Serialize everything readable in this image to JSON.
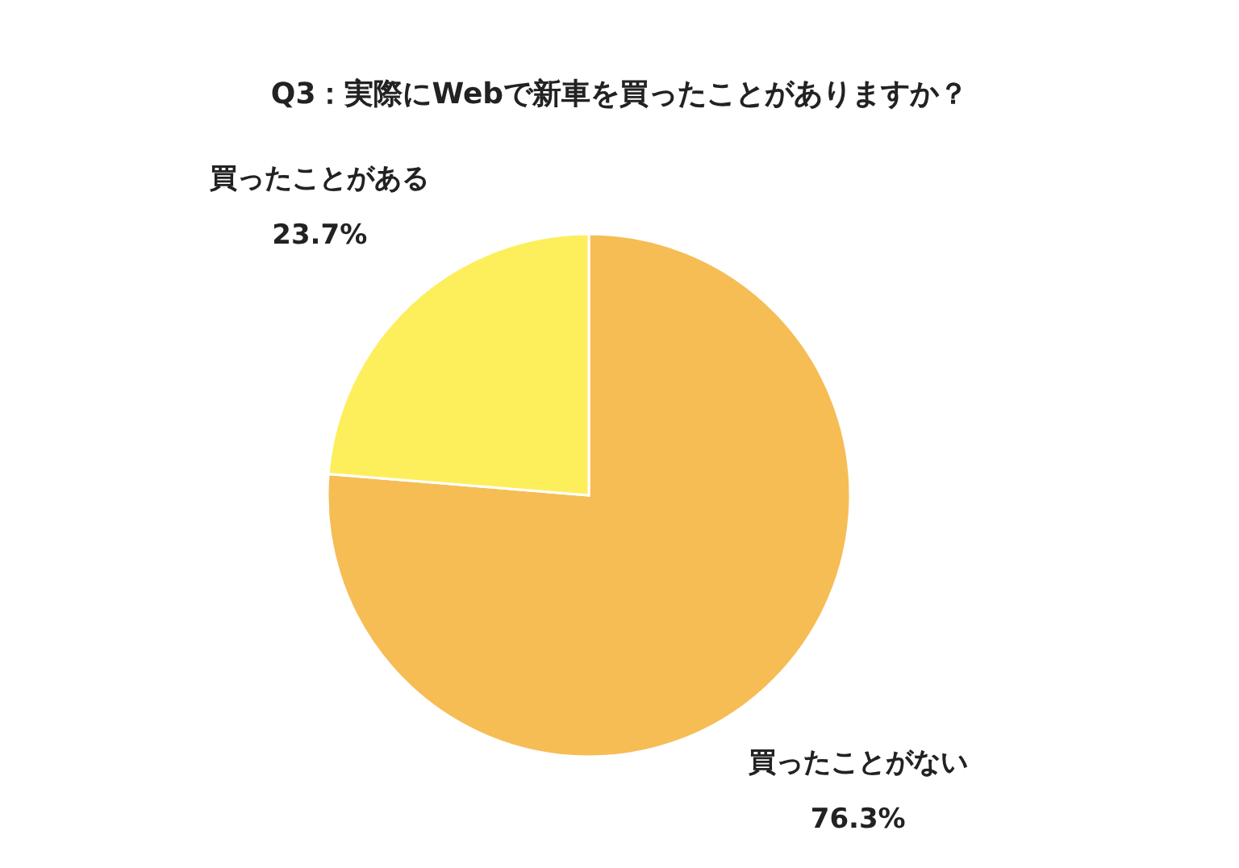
{
  "chart_data": {
    "type": "pie",
    "title": "Q3：実際にWebで新車を買ったことがありますか？",
    "categories": [
      "買ったことがない",
      "買ったことがある"
    ],
    "values": [
      76.3,
      23.7
    ],
    "value_labels": [
      "76.3%",
      "23.7%"
    ],
    "colors": [
      "#f6bd55",
      "#fdef5c"
    ],
    "legend": false
  }
}
